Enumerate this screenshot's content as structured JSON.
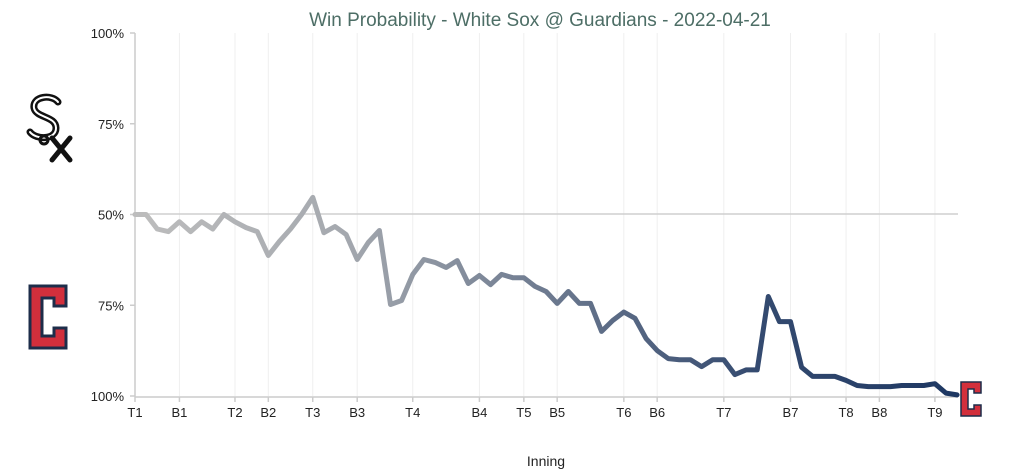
{
  "chart_data": {
    "type": "line",
    "title": "Win Probability - White Sox @ Guardians - 2022-04-21",
    "xlabel": "Inning",
    "ylabel": "",
    "y_tick_labels": [
      "100%",
      "75%",
      "50%",
      "75%",
      "100%"
    ],
    "y_meaning": "White Sox win probability (%) — top = White Sox 100%, bottom = Guardians 100%",
    "ylim": [
      0,
      100
    ],
    "reference_line": 50,
    "grid": "vertical lines at inning ticks",
    "x_ticks": [
      {
        "label": "T1",
        "play": 0
      },
      {
        "label": "B1",
        "play": 4
      },
      {
        "label": "T2",
        "play": 9
      },
      {
        "label": "B2",
        "play": 12
      },
      {
        "label": "T3",
        "play": 16
      },
      {
        "label": "B3",
        "play": 20
      },
      {
        "label": "T4",
        "play": 25
      },
      {
        "label": "B4",
        "play": 31
      },
      {
        "label": "T5",
        "play": 35
      },
      {
        "label": "B5",
        "play": 38
      },
      {
        "label": "T6",
        "play": 44
      },
      {
        "label": "B6",
        "play": 47
      },
      {
        "label": "T7",
        "play": 53
      },
      {
        "label": "B7",
        "play": 59
      },
      {
        "label": "T8",
        "play": 64
      },
      {
        "label": "B8",
        "play": 67
      },
      {
        "label": "T9",
        "play": 72
      }
    ],
    "values": [
      50,
      50,
      46,
      45.3,
      48,
      45.3,
      48,
      46,
      50,
      48,
      46.4,
      45.3,
      38.7,
      42.6,
      46,
      50,
      54.7,
      45,
      46.7,
      44.5,
      37.6,
      42.3,
      45.6,
      25.2,
      26.3,
      33.5,
      37.6,
      36.8,
      35.4,
      37.3,
      31,
      33.2,
      30.7,
      33.5,
      32.6,
      32.6,
      30.2,
      28.8,
      25.5,
      28.8,
      25.5,
      25.5,
      17.8,
      20.8,
      23.1,
      21.4,
      15.8,
      12.5,
      10.3,
      10,
      10,
      8.1,
      10,
      10,
      5.9,
      7.2,
      7.2,
      27.4,
      20.5,
      20.5,
      7.9,
      5.4,
      5.4,
      5.4,
      4.3,
      2.9,
      2.6,
      2.6,
      2.6,
      2.9,
      2.9,
      2.9,
      3.4,
      0.8,
      0.3
    ],
    "line_colors": {
      "start": "#bdbdbd",
      "end": "#1d3762"
    },
    "logos": {
      "top_team": "White Sox",
      "bottom_team": "Guardians",
      "guardians_red": "#d22f3c",
      "guardians_navy": "#1d2d4a"
    }
  }
}
